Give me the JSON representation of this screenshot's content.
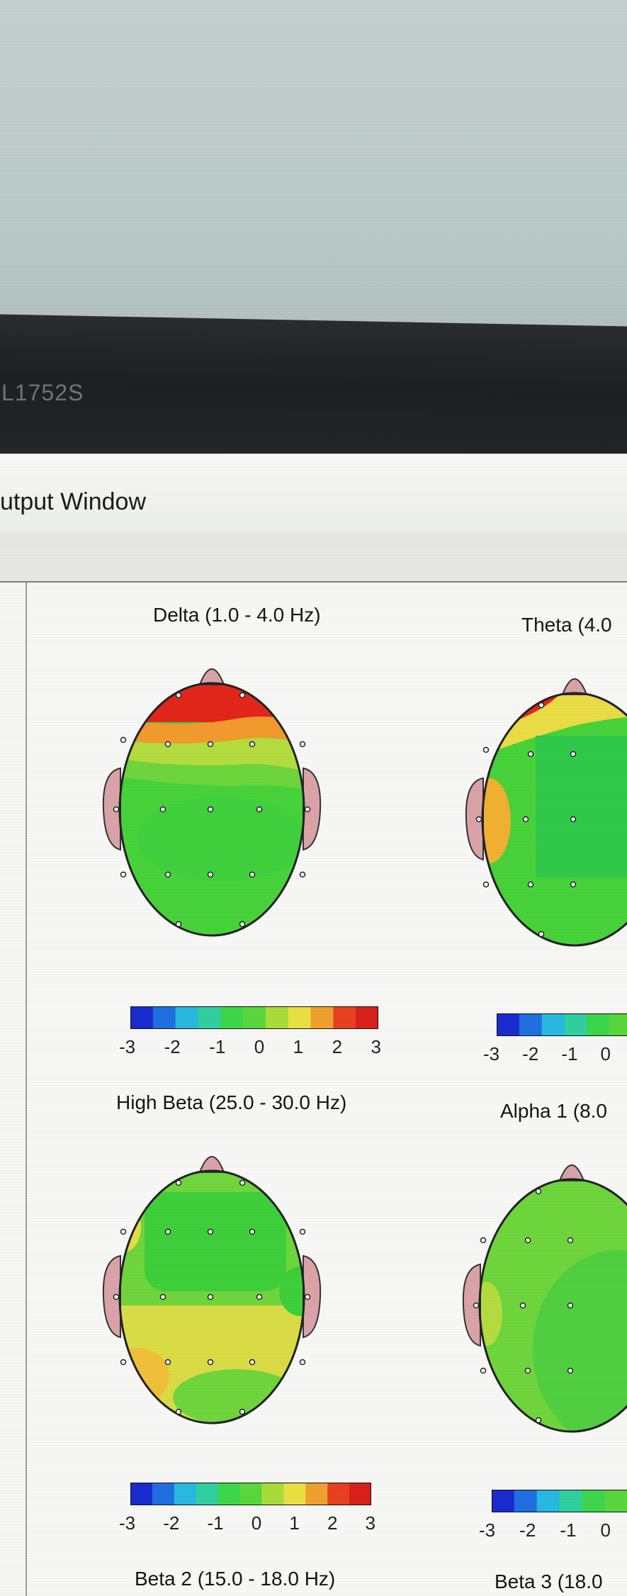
{
  "monitor": {
    "model": "L1752S"
  },
  "window": {
    "title": "utput Window"
  },
  "maps": [
    {
      "id": "delta",
      "label": "Delta (1.0 - 4.0 Hz)"
    },
    {
      "id": "theta",
      "label": "Theta (4.0"
    },
    {
      "id": "high-beta",
      "label": "High Beta (25.0 - 30.0 Hz)"
    },
    {
      "id": "alpha1",
      "label": "Alpha 1 (8.0"
    },
    {
      "id": "beta2",
      "label": "Beta 2 (15.0 - 18.0 Hz)"
    },
    {
      "id": "beta3",
      "label": "Beta 3 (18.0"
    }
  ],
  "scale": {
    "ticks_full": [
      "-3",
      "-2",
      "-1",
      "0",
      "1",
      "2",
      "3"
    ],
    "ticks_partial": [
      "-3",
      "-2",
      "-1",
      "0"
    ],
    "colors": [
      "#1a2bd0",
      "#1f6fe0",
      "#28b8e0",
      "#30d0a0",
      "#3cd64a",
      "#59d63c",
      "#a8dc3a",
      "#e8e040",
      "#f0a030",
      "#e84020",
      "#d8201a"
    ]
  },
  "colors": {
    "red": "#e2261b",
    "orange": "#f29a2e",
    "yellow": "#e9dc45",
    "yellow_green": "#b4dc3e",
    "green": "#47d23a",
    "deep_green": "#25c843",
    "ear": "#d9a3a8"
  }
}
